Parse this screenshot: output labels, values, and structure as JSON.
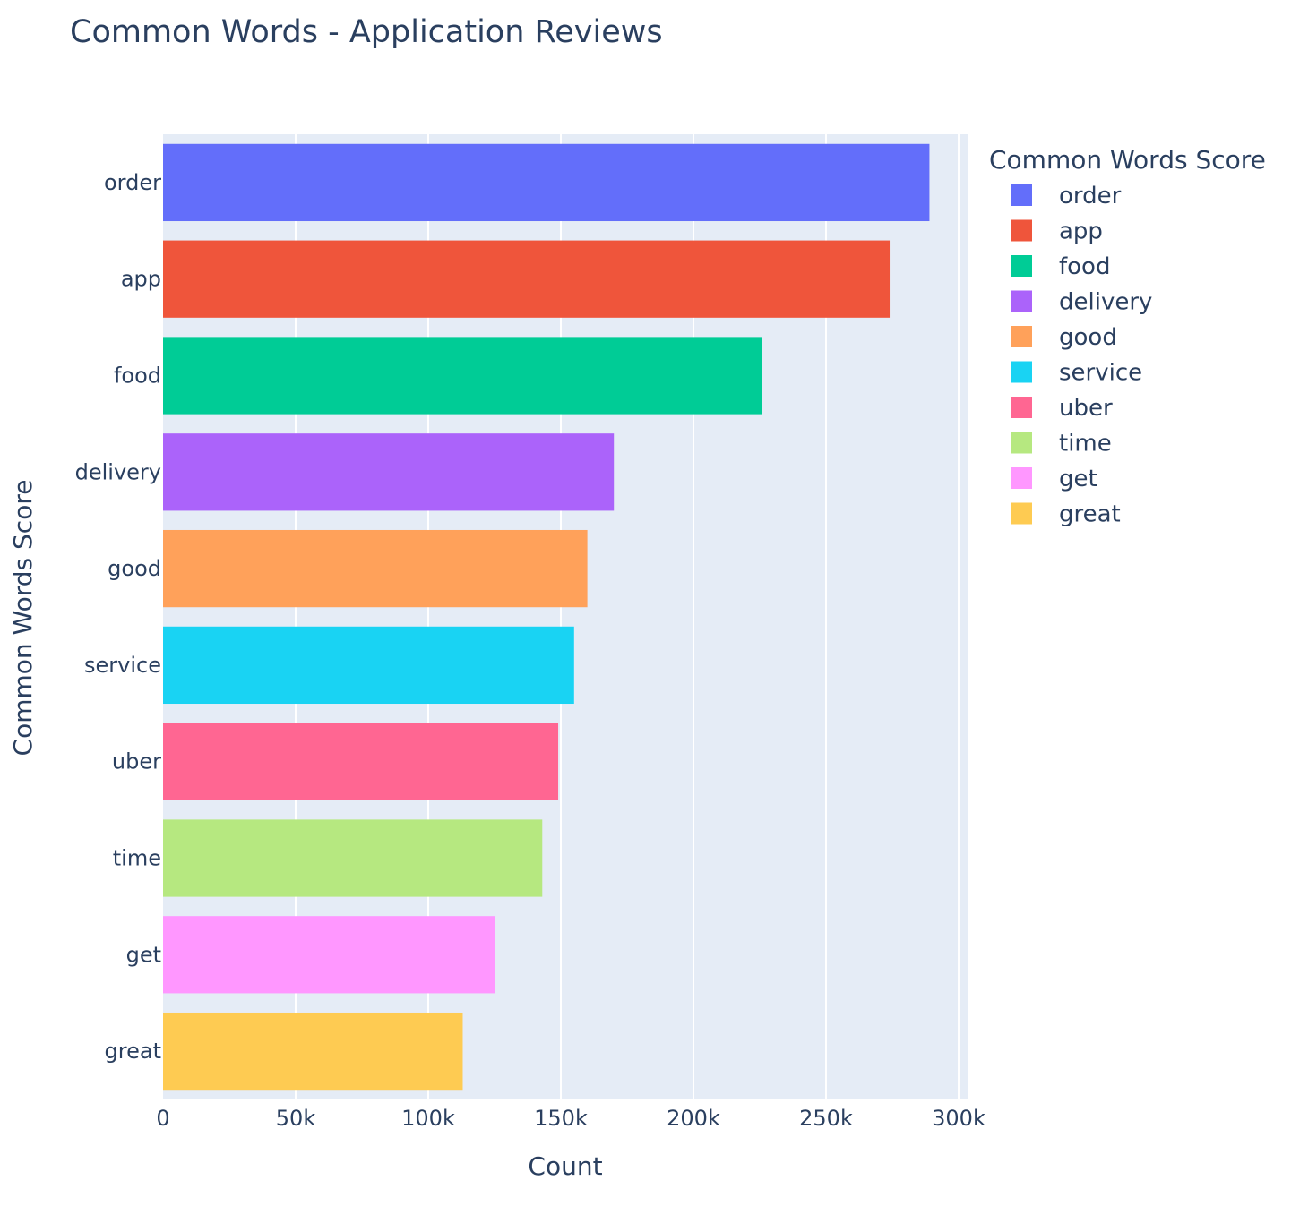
{
  "chart_data": {
    "type": "bar",
    "orientation": "horizontal",
    "title": "Common Words - Application Reviews",
    "xlabel": "Count",
    "ylabel": "Common Words Score",
    "legend_title": "Common Words Score",
    "legend_position": "right",
    "grid": true,
    "xlim": [
      0,
      302000
    ],
    "x_ticks": [
      0,
      50000,
      100000,
      150000,
      200000,
      250000,
      300000
    ],
    "x_tick_labels": [
      "0",
      "50k",
      "100k",
      "150k",
      "200k",
      "250k",
      "300k"
    ],
    "categories": [
      "order",
      "app",
      "food",
      "delivery",
      "good",
      "service",
      "uber",
      "time",
      "get",
      "great"
    ],
    "values": [
      289000,
      274000,
      226000,
      170000,
      160000,
      155000,
      149000,
      143000,
      125000,
      113000
    ],
    "colors": [
      "#636efa",
      "#ef553b",
      "#00cc96",
      "#ab63fa",
      "#ffa15a",
      "#19d3f3",
      "#ff6692",
      "#b6e880",
      "#ff97ff",
      "#fecb52"
    ],
    "plot_background": "#e5ecf6"
  }
}
